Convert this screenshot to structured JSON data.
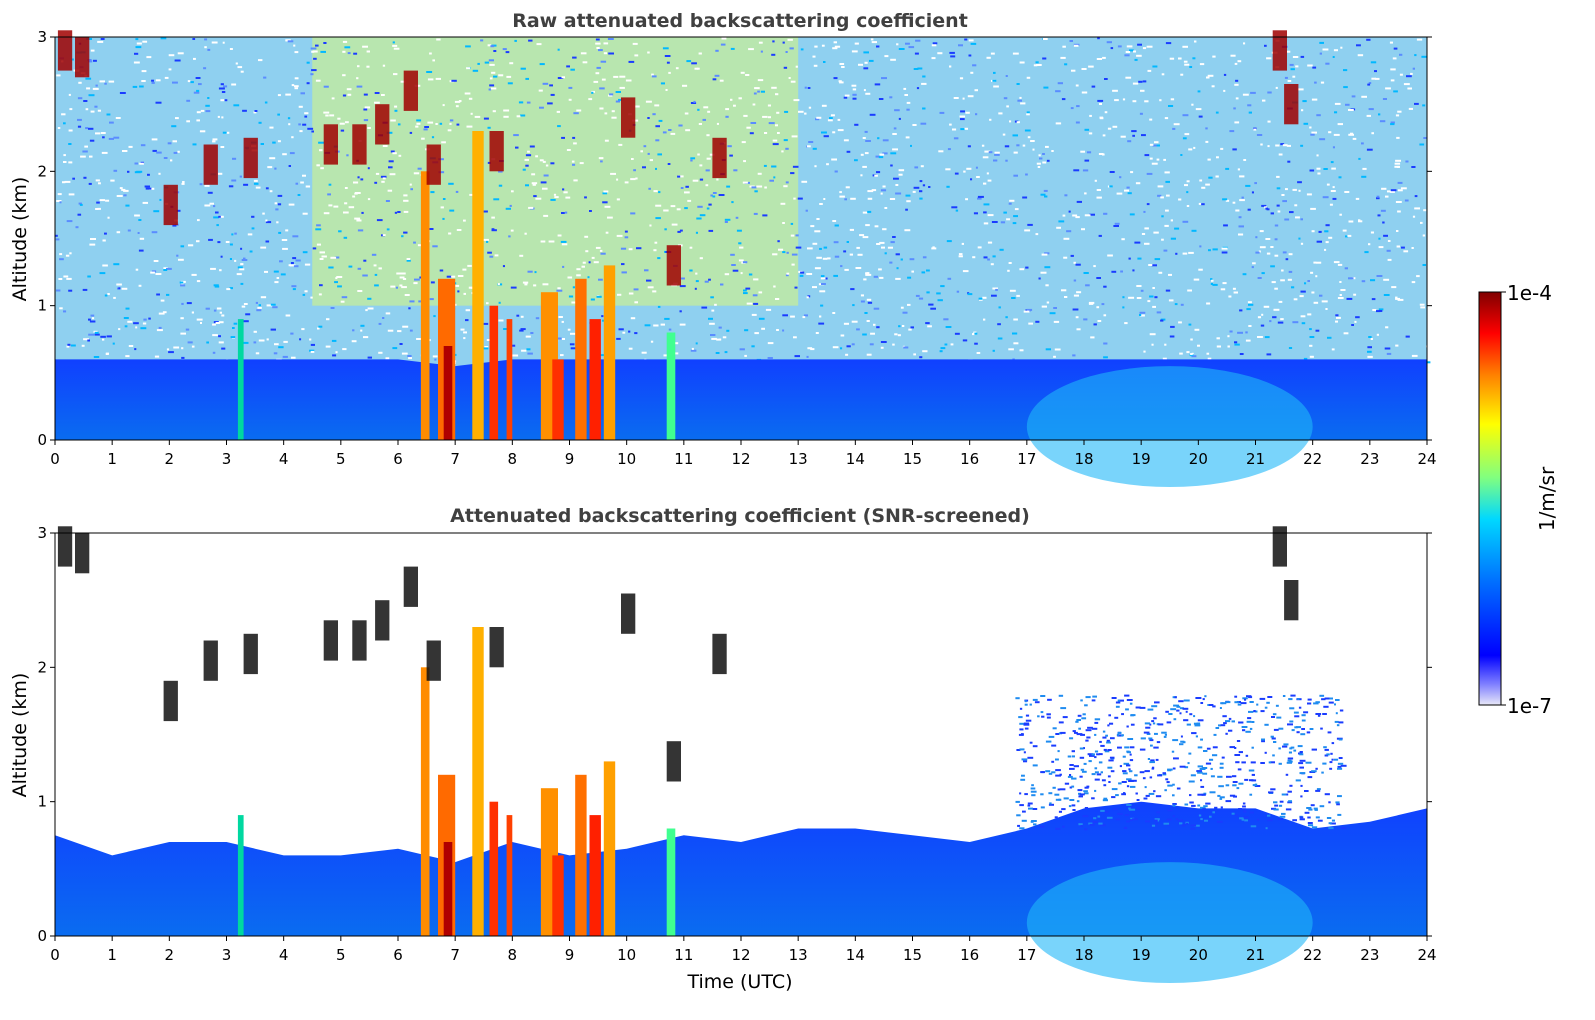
{
  "chart_data": [
    {
      "type": "heatmap",
      "title": "Raw attenuated backscattering coefficient",
      "xlabel": "",
      "ylabel": "Altitude (km)",
      "xlim": [
        0,
        24
      ],
      "ylim": [
        0,
        3
      ],
      "xticks": [
        0,
        1,
        2,
        3,
        4,
        5,
        6,
        7,
        8,
        9,
        10,
        11,
        12,
        13,
        14,
        15,
        16,
        17,
        18,
        19,
        20,
        21,
        22,
        23,
        24
      ],
      "yticks": [
        0,
        1,
        2,
        3
      ],
      "screened": false
    },
    {
      "type": "heatmap",
      "title": "Attenuated backscattering coefficient (SNR-screened)",
      "xlabel": "Time (UTC)",
      "ylabel": "Altitude (km)",
      "xlim": [
        0,
        24
      ],
      "ylim": [
        0,
        3
      ],
      "xticks": [
        0,
        1,
        2,
        3,
        4,
        5,
        6,
        7,
        8,
        9,
        10,
        11,
        12,
        13,
        14,
        15,
        16,
        17,
        18,
        19,
        20,
        21,
        22,
        23,
        24
      ],
      "yticks": [
        0,
        1,
        2,
        3
      ],
      "screened": true
    }
  ],
  "colorbar": {
    "label": "1/m/sr",
    "max_label": "1e-4",
    "min_label": "1e-7",
    "scale": "log",
    "colormap": [
      "#e8e8f8",
      "#0000ff",
      "#0080ff",
      "#00e0ff",
      "#80ff80",
      "#ffff00",
      "#ff8000",
      "#ff0000",
      "#800000"
    ]
  },
  "colors": {
    "background": "#ffffff",
    "title": "#404040",
    "aerosol_layer": "#0a3cf0",
    "cloud_core": "#8b0000"
  }
}
